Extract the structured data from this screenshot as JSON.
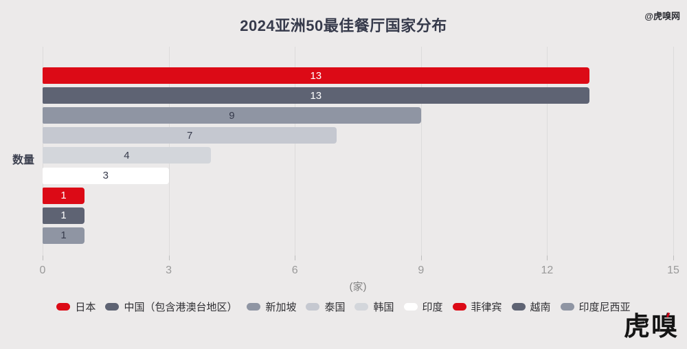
{
  "header": {
    "title": "2024亚洲50最佳餐厅国家分布",
    "watermark": "@虎嗅网"
  },
  "chart_data": {
    "type": "bar",
    "orientation": "horizontal",
    "title": "2024亚洲50最佳餐厅国家分布",
    "ylabel": "数量",
    "xlabel": "(家)",
    "xlim": [
      0,
      15
    ],
    "xticks": [
      0,
      3,
      6,
      9,
      12,
      15
    ],
    "grid": true,
    "legend_position": "bottom",
    "categories": [
      "日本",
      "中国（包含港澳台地区）",
      "新加坡",
      "泰国",
      "韩国",
      "印度",
      "菲律宾",
      "越南",
      "印度尼西亚"
    ],
    "values": [
      13,
      13,
      9,
      7,
      4,
      3,
      1,
      1,
      1
    ],
    "bar_colors": [
      "#dc0a16",
      "#5e6373",
      "#8f95a3",
      "#c5c8d0",
      "#d3d6db",
      "#ffffff",
      "#dc0a16",
      "#5e6373",
      "#8f95a3"
    ],
    "value_label_colors": [
      "#ffffff",
      "#ffffff",
      "#363a4b",
      "#363a4b",
      "#363a4b",
      "#363a4b",
      "#ffffff",
      "#ffffff",
      "#363a4b"
    ]
  },
  "footer": {
    "logo": "虎嗅"
  }
}
